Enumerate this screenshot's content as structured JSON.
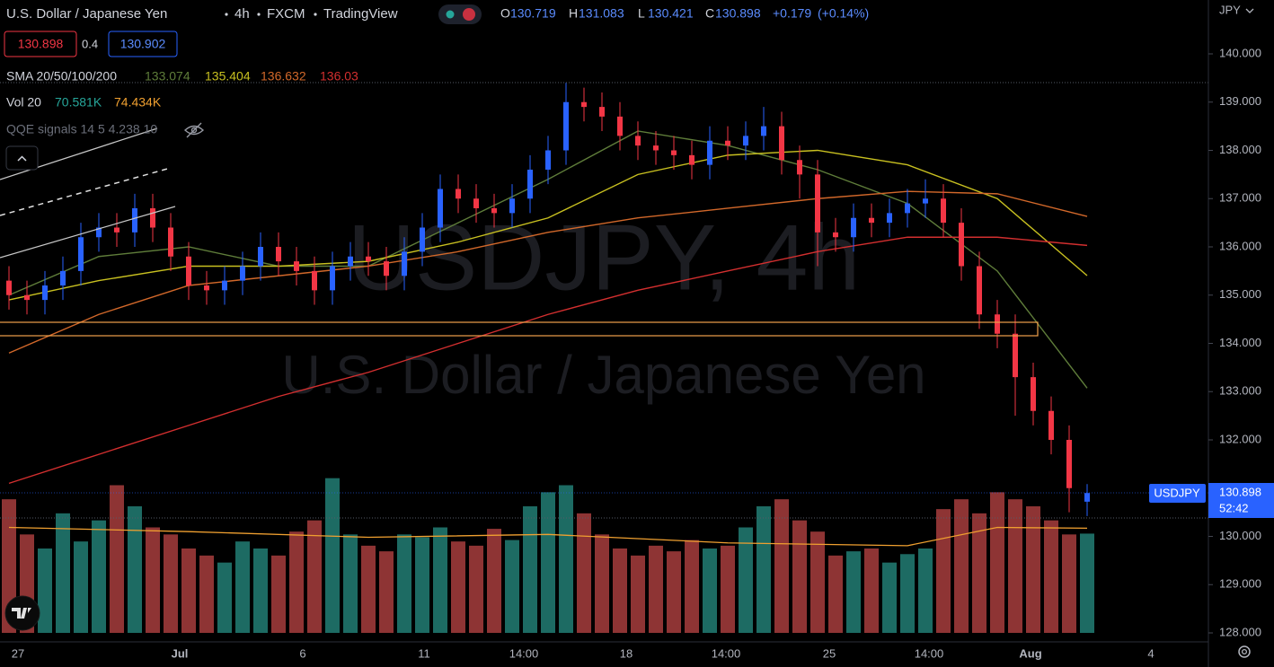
{
  "chart_data": {
    "type": "candlestick",
    "symbol_name": "U.S. Dollar / Japanese Yen",
    "interval": "4h",
    "source": "FXCM",
    "platform": "TradingView",
    "currency": "JPY",
    "change": "+0.179",
    "change_pct": "(+0.14%)",
    "bid": "130.898",
    "spread": "0.4",
    "ask": "130.902",
    "ticker": "USDJPY",
    "countdown": "52:42",
    "watermark": "USDJPY, 4h",
    "watermark_sub": "U.S. Dollar / Japanese Yen",
    "sma_label": "SMA 20/50/100/200",
    "vol_label": "Vol 20",
    "volume_value_label": "70.581K",
    "indicator_label": "QQE signals 14 5 4.238 10",
    "time_labels": [
      "27",
      "Jul",
      "6",
      "11",
      "14:00",
      "18",
      "14:00",
      "25",
      "14:00",
      "Aug",
      "4"
    ],
    "ylim": [
      127.814,
      141.116
    ],
    "yticks": [
      {
        "value": 128,
        "label": "128.000"
      },
      {
        "value": 129,
        "label": "129.000"
      },
      {
        "value": 130,
        "label": "130.000"
      },
      {
        "value": 131,
        "label": "131.000"
      },
      {
        "value": 132,
        "label": "132.000"
      },
      {
        "value": 133,
        "label": "133.000"
      },
      {
        "value": 134,
        "label": "134.000"
      },
      {
        "value": 135,
        "label": "135.000"
      },
      {
        "value": 136,
        "label": "136.000"
      },
      {
        "value": 137,
        "label": "137.000"
      },
      {
        "value": 138,
        "label": "138.000"
      },
      {
        "value": 139,
        "label": "139.000"
      },
      {
        "value": 140,
        "label": "140.000"
      }
    ],
    "grid": false,
    "up_color": "#2962ff",
    "down_color": "#f23645",
    "vol_up_color": "#1d6b63",
    "vol_down_color": "#8e3434",
    "vlim": [
      0,
      150
    ],
    "open": [
      135.3,
      135.0,
      134.9,
      135.2,
      135.5,
      136.2,
      136.4,
      136.3,
      136.8,
      136.4,
      135.8,
      135.2,
      135.1,
      135.3,
      135.6,
      136.0,
      135.7,
      135.5,
      135.1,
      135.6,
      135.8,
      135.7,
      135.4,
      135.9,
      136.4,
      137.2,
      137.0,
      136.8,
      136.7,
      137.0,
      137.6,
      138.0,
      139.0,
      138.9,
      138.7,
      138.3,
      138.1,
      138.0,
      137.9,
      137.7,
      138.2,
      138.1,
      138.3,
      138.5,
      137.8,
      137.5,
      136.3,
      136.2,
      136.6,
      136.5,
      136.7,
      136.9,
      137.0,
      136.5,
      135.6,
      134.6,
      134.2,
      133.3,
      132.6,
      132.0,
      130.719
    ],
    "high": [
      135.6,
      135.3,
      135.5,
      135.8,
      136.5,
      136.7,
      136.7,
      137.1,
      137.1,
      136.7,
      136.1,
      135.5,
      135.6,
      135.9,
      136.3,
      136.3,
      136.0,
      135.8,
      135.9,
      136.1,
      136.1,
      136.0,
      136.2,
      136.7,
      137.5,
      137.5,
      137.3,
      137.1,
      137.3,
      137.9,
      138.3,
      139.4,
      139.3,
      139.2,
      139.0,
      138.6,
      138.4,
      138.3,
      138.2,
      138.5,
      138.5,
      138.6,
      138.9,
      138.8,
      138.1,
      137.8,
      136.6,
      136.9,
      136.9,
      137.0,
      137.2,
      137.4,
      137.3,
      136.8,
      135.9,
      134.9,
      134.6,
      133.6,
      132.9,
      132.3,
      131.083
    ],
    "low": [
      134.7,
      134.6,
      134.6,
      134.9,
      135.2,
      135.9,
      136.0,
      136.0,
      136.1,
      135.5,
      134.9,
      134.8,
      134.8,
      135.0,
      135.3,
      135.4,
      135.2,
      134.8,
      134.8,
      135.3,
      135.4,
      135.1,
      135.1,
      135.6,
      136.1,
      136.7,
      136.5,
      136.4,
      136.4,
      136.7,
      137.3,
      137.7,
      138.6,
      138.4,
      138.0,
      137.8,
      137.7,
      137.6,
      137.4,
      137.4,
      137.8,
      137.8,
      138.0,
      137.5,
      137.0,
      135.6,
      135.9,
      135.9,
      136.2,
      136.2,
      136.4,
      136.6,
      136.2,
      135.3,
      134.3,
      133.9,
      132.5,
      132.3,
      131.7,
      130.5,
      130.421
    ],
    "close": [
      135.0,
      134.9,
      135.2,
      135.5,
      136.2,
      136.4,
      136.3,
      136.8,
      136.4,
      135.8,
      135.2,
      135.1,
      135.3,
      135.6,
      136.0,
      135.7,
      135.5,
      135.1,
      135.6,
      135.8,
      135.7,
      135.4,
      135.9,
      136.4,
      137.2,
      137.0,
      136.8,
      136.7,
      137.0,
      137.6,
      138.0,
      139.0,
      138.9,
      138.7,
      138.3,
      138.1,
      138.0,
      137.9,
      137.7,
      138.2,
      138.1,
      138.3,
      138.5,
      137.8,
      137.5,
      136.3,
      136.2,
      136.6,
      136.5,
      136.7,
      136.9,
      137.0,
      136.5,
      135.6,
      134.6,
      134.2,
      133.3,
      132.6,
      132.0,
      131.0,
      130.898
    ],
    "volume": [
      95,
      70,
      60,
      85,
      65,
      80,
      105,
      90,
      75,
      70,
      60,
      55,
      50,
      65,
      60,
      55,
      72,
      80,
      110,
      70,
      62,
      58,
      70,
      68,
      75,
      65,
      62,
      74,
      66,
      90,
      100,
      105,
      85,
      70,
      60,
      55,
      62,
      58,
      66,
      60,
      62,
      75,
      90,
      95,
      80,
      72,
      55,
      58,
      60,
      50,
      56,
      60,
      88,
      95,
      85,
      100,
      95,
      90,
      80,
      70,
      70.581
    ],
    "volume_ma": {
      "color": "#f0a030",
      "x": [
        0,
        10,
        20,
        30,
        40,
        50,
        55,
        60
      ],
      "values": [
        75,
        72,
        68,
        70,
        64,
        62,
        75,
        74.434
      ],
      "value_label": "74.434K"
    },
    "sma": [
      {
        "color": "#5f7d3a",
        "x": [
          0,
          5,
          10,
          15,
          20,
          25,
          30,
          35,
          40,
          45,
          50,
          55,
          60
        ],
        "values": [
          135.0,
          135.8,
          136.0,
          135.6,
          135.6,
          136.5,
          137.4,
          138.4,
          138.1,
          137.6,
          136.9,
          135.5,
          133.074
        ]
      },
      {
        "color": "#c8c020",
        "x": [
          0,
          5,
          10,
          15,
          20,
          25,
          30,
          35,
          40,
          45,
          50,
          55,
          60
        ],
        "values": [
          134.9,
          135.3,
          135.6,
          135.6,
          135.7,
          136.1,
          136.6,
          137.5,
          137.9,
          138.0,
          137.7,
          137.0,
          135.404
        ]
      },
      {
        "color": "#d2682a",
        "x": [
          0,
          5,
          10,
          15,
          20,
          25,
          30,
          35,
          40,
          45,
          50,
          55,
          60
        ],
        "values": [
          133.8,
          134.6,
          135.2,
          135.4,
          135.6,
          135.9,
          136.3,
          136.6,
          136.8,
          137.0,
          137.15,
          137.1,
          136.632
        ]
      },
      {
        "color": "#d32f2f",
        "x": [
          0,
          5,
          10,
          15,
          20,
          25,
          30,
          35,
          40,
          45,
          50,
          55,
          60
        ],
        "values": [
          131.1,
          131.7,
          132.3,
          132.9,
          133.4,
          134.0,
          134.6,
          135.1,
          135.5,
          135.9,
          136.2,
          136.2,
          136.03
        ]
      }
    ]
  }
}
